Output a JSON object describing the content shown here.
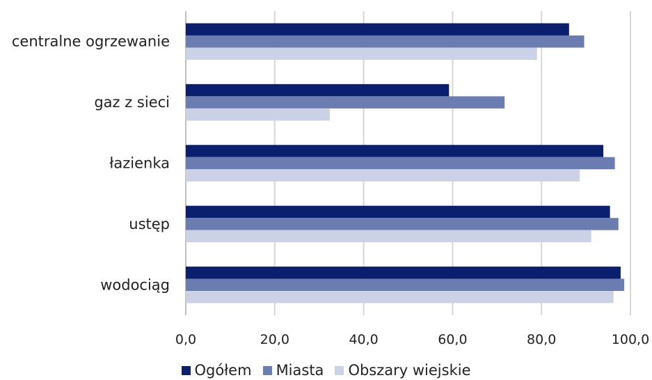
{
  "chart_data": {
    "type": "bar",
    "orientation": "horizontal",
    "categories": [
      "centralne ogrzewanie",
      "gaz z sieci",
      "łazienka",
      "ustęp",
      "wodociąg"
    ],
    "series": [
      {
        "name": "Ogółem",
        "color": "#0a1f6e",
        "values": [
          86.2,
          59.2,
          93.9,
          95.4,
          97.8
        ]
      },
      {
        "name": "Miasta",
        "color": "#6b7db0",
        "values": [
          89.6,
          71.7,
          96.5,
          97.3,
          98.6
        ]
      },
      {
        "name": "Obszary wiejskie",
        "color": "#ccd2e6",
        "values": [
          79.0,
          32.4,
          88.6,
          91.2,
          96.2
        ]
      }
    ],
    "xlim": [
      0,
      100
    ],
    "xticks": [
      "0,0",
      "20,0",
      "40,0",
      "60,0",
      "80,0",
      "100,0"
    ],
    "grid": true,
    "legend_position": "bottom"
  }
}
